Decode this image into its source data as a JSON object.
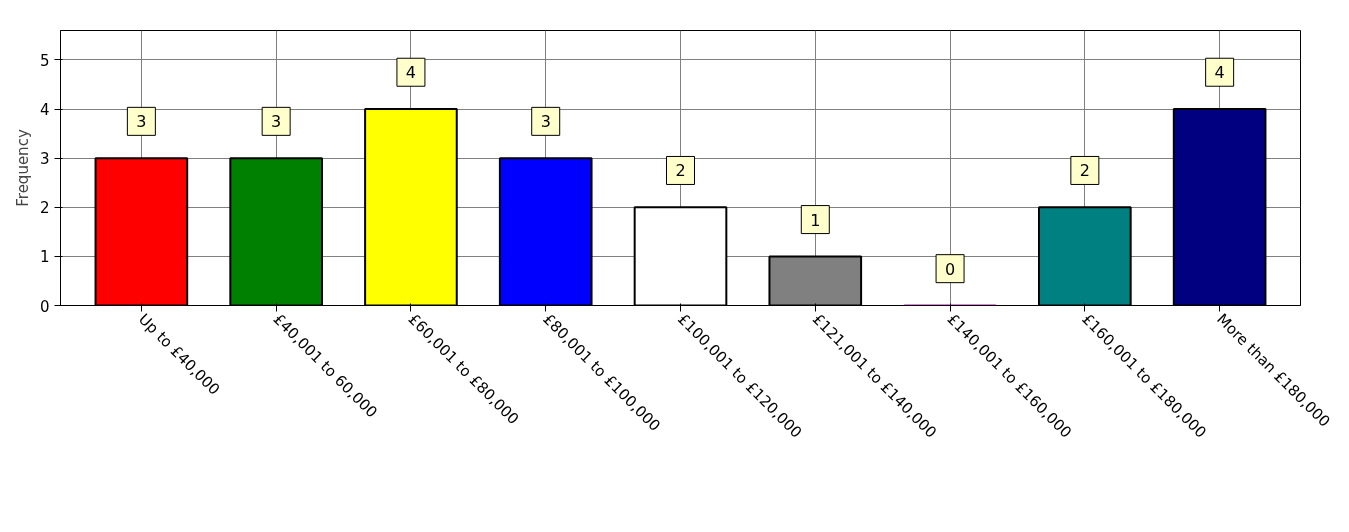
{
  "chart_data": {
    "type": "bar",
    "ylabel": "Frequency",
    "categories": [
      "Up to £40,000",
      "£40,001 to 60,000",
      "£60,001 to £80,000",
      "£80,001 to £100,000",
      "£100,001 to £120,000",
      "£121,001 to £140,000",
      "£140,001 to £160,000",
      "£160,001 to £180,000",
      "More than £180,000"
    ],
    "values": [
      3,
      3,
      4,
      3,
      2,
      1,
      0,
      2,
      4
    ],
    "colors": [
      "#ff0000",
      "#008000",
      "#ffff00",
      "#0000ff",
      "#ffffff",
      "#808080",
      "#c000c0",
      "#008080",
      "#000080"
    ],
    "ylim": [
      0,
      5.6
    ],
    "yticks": [
      0,
      1,
      2,
      3,
      4,
      5
    ],
    "grid": true,
    "data_labels": true
  }
}
